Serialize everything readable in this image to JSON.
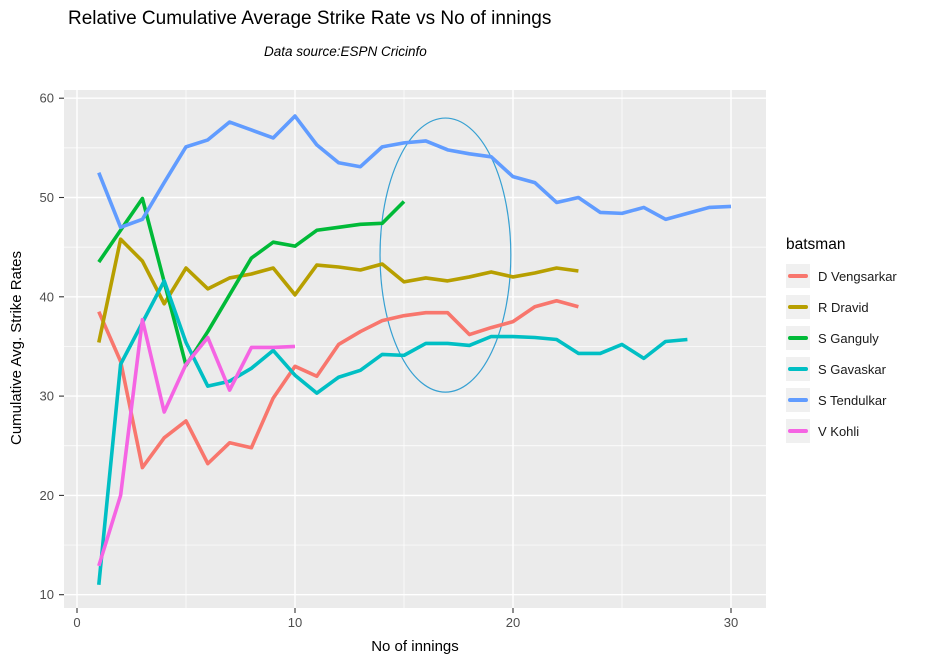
{
  "title": "Relative Cumulative Average Strike Rate vs No of innings",
  "subtitle": "Data source:ESPN Cricinfo",
  "chart_data": {
    "type": "line",
    "title": "Relative Cumulative Average Strike Rate vs No of innings",
    "subtitle": "Data source:ESPN Cricinfo",
    "xlabel": "No of innings",
    "ylabel": "Cumulative Avg. Strike Rates",
    "legend_title": "batsman",
    "legend_position": "right",
    "grid": true,
    "xlim": [
      0,
      31.6
    ],
    "ylim": [
      8.7,
      60.8
    ],
    "x_ticks": [
      0,
      10,
      20,
      30
    ],
    "y_ticks": [
      10,
      20,
      30,
      40,
      50,
      60
    ],
    "x_minor_ticks": [
      5,
      15,
      25
    ],
    "y_minor_ticks": [
      15,
      25,
      35,
      45,
      55
    ],
    "x_start": 1,
    "x_step": 1,
    "series": [
      {
        "name": "D Vengsarkar",
        "color": "#F8766D",
        "values": [
          38.5,
          33.5,
          22.8,
          25.8,
          27.5,
          23.2,
          25.3,
          24.8,
          29.8,
          33.0,
          32.0,
          35.2,
          36.5,
          37.6,
          38.1,
          38.4,
          38.4,
          36.2,
          36.9,
          37.5,
          39.0,
          39.6,
          39.0
        ]
      },
      {
        "name": "R Dravid",
        "color": "#B79F00",
        "values": [
          35.4,
          45.8,
          43.6,
          39.3,
          42.9,
          40.8,
          41.9,
          42.3,
          42.9,
          40.2,
          43.2,
          43.0,
          42.7,
          43.3,
          41.5,
          41.9,
          41.6,
          42.0,
          42.5,
          42.0,
          42.4,
          42.9,
          42.6
        ]
      },
      {
        "name": "S Ganguly",
        "color": "#00BA38",
        "values": [
          43.5,
          46.7,
          49.9,
          41.5,
          33.1,
          36.5,
          40.2,
          43.9,
          45.5,
          45.1,
          46.7,
          47.0,
          47.3,
          47.4,
          49.6
        ]
      },
      {
        "name": "S Gavaskar",
        "color": "#00BFC4",
        "values": [
          11.0,
          33.2,
          37.4,
          41.6,
          35.4,
          31.0,
          31.5,
          32.8,
          34.6,
          32.1,
          30.3,
          31.9,
          32.6,
          34.2,
          34.1,
          35.3,
          35.3,
          35.1,
          36.0,
          36.0,
          35.9,
          35.7,
          34.3,
          34.3,
          35.2,
          33.8,
          35.5,
          35.7
        ]
      },
      {
        "name": "S Tendulkar",
        "color": "#619CFF",
        "values": [
          52.5,
          47.0,
          47.8,
          51.5,
          55.1,
          55.8,
          57.6,
          56.8,
          56.0,
          58.2,
          55.3,
          53.5,
          53.1,
          55.1,
          55.5,
          55.7,
          54.8,
          54.4,
          54.1,
          52.1,
          51.5,
          49.5,
          50.0,
          48.5,
          48.4,
          49.0,
          47.8,
          48.4,
          49.0,
          49.1
        ]
      },
      {
        "name": "V Kohli",
        "color": "#F564E3",
        "values": [
          12.9,
          20.0,
          37.7,
          28.4,
          33.2,
          35.9,
          30.6,
          34.9,
          34.9,
          35.0
        ]
      }
    ],
    "annotation": {
      "type": "ellipse",
      "x": 16.9,
      "y": 44.2,
      "rx": 3.0,
      "ry": 13.8,
      "color": "#36A0D2"
    },
    "colors": {
      "panel_background": "#EBEBEB",
      "gridline": "#FFFFFF",
      "axis_text": "#4D4D4D",
      "tick_mark": "#333333",
      "legend_key_background": "#F0F0F0",
      "text": "#000000"
    }
  }
}
